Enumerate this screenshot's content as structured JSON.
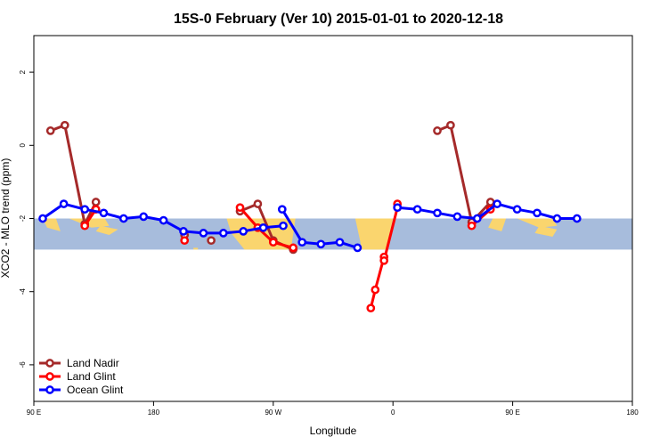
{
  "chart_data": {
    "type": "line",
    "title": "15S-0 February (Ver 10)   2015-01-01 to 2020-12-18",
    "xlabel": "Longitude",
    "ylabel": "XCO2 - MLO trend (ppm)",
    "xlim": [
      -90,
      180
    ],
    "ylim": [
      -7,
      3
    ],
    "x_ticks": [
      {
        "value": -90,
        "label": "90 E"
      },
      {
        "value": -36,
        "label": "180"
      },
      {
        "value": 18,
        "label": "90 W"
      },
      {
        "value": 72,
        "label": "0"
      },
      {
        "value": 126,
        "label": "90 E"
      },
      {
        "value": 180,
        "label": "180"
      }
    ],
    "y_ticks": [
      {
        "value": 2,
        "label": "2"
      },
      {
        "value": 0,
        "label": "0"
      },
      {
        "value": -2,
        "label": "-2"
      },
      {
        "value": -4,
        "label": "-4"
      },
      {
        "value": -6,
        "label": "-6"
      }
    ],
    "grid": false,
    "legend_position": "bottom-left",
    "background_band": {
      "ymin": -2.85,
      "ymax": -2.0,
      "ocean_color": "#a7bcdc",
      "land_color": "#fad56e"
    },
    "series": [
      {
        "name": "Land Nadir",
        "color": "#a52a2a",
        "segments": [
          [
            [
              -82.5,
              0.4
            ],
            [
              -76,
              0.55
            ],
            [
              -67,
              -2.15
            ],
            [
              -62,
              -1.55
            ]
          ],
          [
            [
              -22,
              -2.45
            ]
          ],
          [
            [
              3,
              -1.8
            ],
            [
              11,
              -1.6
            ],
            [
              18,
              -2.6
            ],
            [
              27,
              -2.85
            ]
          ],
          [
            [
              -10,
              -2.6
            ]
          ],
          [
            [
              92,
              0.4
            ],
            [
              98,
              0.55
            ],
            [
              107.5,
              -2.1
            ],
            [
              116,
              -1.55
            ]
          ]
        ]
      },
      {
        "name": "Land Glint",
        "color": "#ff0000",
        "segments": [
          [
            [
              -67,
              -2.2
            ],
            [
              -62,
              -1.75
            ]
          ],
          [
            [
              -22,
              -2.6
            ]
          ],
          [
            [
              3,
              -1.7
            ],
            [
              11,
              -2.25
            ],
            [
              18,
              -2.65
            ],
            [
              27,
              -2.8
            ]
          ],
          [
            [
              62,
              -4.45
            ],
            [
              64,
              -3.95
            ],
            [
              68,
              -3.05
            ],
            [
              68,
              -3.15
            ],
            [
              74,
              -1.7
            ],
            [
              74,
              -1.6
            ]
          ],
          [
            [
              107.5,
              -2.2
            ],
            [
              116,
              -1.75
            ]
          ]
        ]
      },
      {
        "name": "Ocean Glint",
        "color": "#0000ff",
        "segments": [
          [
            [
              -86,
              -2.0
            ],
            [
              -76.5,
              -1.6
            ],
            [
              -67,
              -1.75
            ],
            [
              -58.5,
              -1.85
            ],
            [
              -49.5,
              -2.0
            ],
            [
              -40.5,
              -1.95
            ],
            [
              -31.5,
              -2.05
            ],
            [
              -22.5,
              -2.35
            ],
            [
              -13.5,
              -2.4
            ],
            [
              -4.5,
              -2.4
            ],
            [
              4.5,
              -2.35
            ],
            [
              13.5,
              -2.25
            ],
            [
              22.5,
              -2.2
            ]
          ],
          [
            [
              22,
              -1.75
            ],
            [
              31,
              -2.65
            ],
            [
              39.5,
              -2.7
            ],
            [
              48,
              -2.65
            ],
            [
              56,
              -2.8
            ]
          ],
          [
            [
              74,
              -1.7
            ],
            [
              83,
              -1.75
            ],
            [
              92,
              -1.85
            ],
            [
              101,
              -1.95
            ],
            [
              110,
              -2.0
            ],
            [
              119,
              -1.6
            ],
            [
              128,
              -1.75
            ],
            [
              137,
              -1.85
            ],
            [
              146,
              -2.0
            ],
            [
              155,
              -2.0
            ]
          ]
        ]
      }
    ]
  }
}
